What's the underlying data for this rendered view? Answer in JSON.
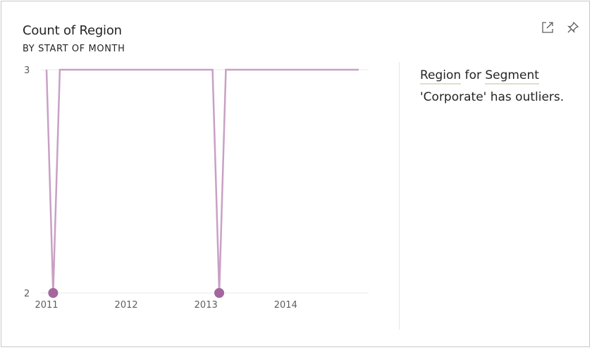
{
  "card": {
    "title": "Count of Region",
    "subtitle": "BY START OF MONTH",
    "expand_icon": "focus-mode-icon",
    "pin_icon": "pin-icon"
  },
  "insight": {
    "field1": "Region",
    "word_for": "for",
    "field2": "Segment",
    "rest": "'Corporate' has outliers."
  },
  "chart_data": {
    "type": "line",
    "title": "Count of Region",
    "subtitle": "BY START OF MONTH",
    "x_ticks": [
      "2011",
      "2012",
      "2013",
      "2014"
    ],
    "y_ticks": [
      "2",
      "3"
    ],
    "ylim": [
      2,
      3
    ],
    "xlim": [
      "2011-01-01",
      "2014-12-01"
    ],
    "grid": true,
    "line_color": "#c9a0c5",
    "outlier_color": "#a4669e",
    "series": [
      {
        "x": [
          "2011-01-01",
          "2011-02-01",
          "2011-03-01",
          "2011-04-01",
          "2011-05-01",
          "2011-06-01",
          "2011-07-01",
          "2011-08-01",
          "2011-09-01",
          "2011-10-01",
          "2011-11-01",
          "2011-12-01",
          "2012-01-01",
          "2012-02-01",
          "2012-03-01",
          "2012-04-01",
          "2012-05-01",
          "2012-06-01",
          "2012-07-01",
          "2012-08-01",
          "2012-09-01",
          "2012-10-01",
          "2012-11-01",
          "2012-12-01",
          "2013-01-01",
          "2013-02-01",
          "2013-03-01",
          "2013-04-01",
          "2013-05-01",
          "2013-06-01",
          "2013-07-01",
          "2013-08-01",
          "2013-09-01",
          "2013-10-01",
          "2013-11-01",
          "2013-12-01",
          "2014-01-01",
          "2014-02-01",
          "2014-03-01",
          "2014-04-01",
          "2014-05-01",
          "2014-06-01",
          "2014-07-01",
          "2014-08-01",
          "2014-09-01",
          "2014-10-01",
          "2014-11-01",
          "2014-12-01"
        ],
        "values": [
          3,
          2,
          3,
          3,
          3,
          3,
          3,
          3,
          3,
          3,
          3,
          3,
          3,
          3,
          3,
          3,
          3,
          3,
          3,
          3,
          3,
          3,
          3,
          3,
          3,
          3,
          2,
          3,
          3,
          3,
          3,
          3,
          3,
          3,
          3,
          3,
          3,
          3,
          3,
          3,
          3,
          3,
          3,
          3,
          3,
          3,
          3,
          3
        ]
      }
    ],
    "outliers": [
      {
        "x": "2011-02-01",
        "y": 2
      },
      {
        "x": "2013-03-01",
        "y": 2
      }
    ]
  }
}
